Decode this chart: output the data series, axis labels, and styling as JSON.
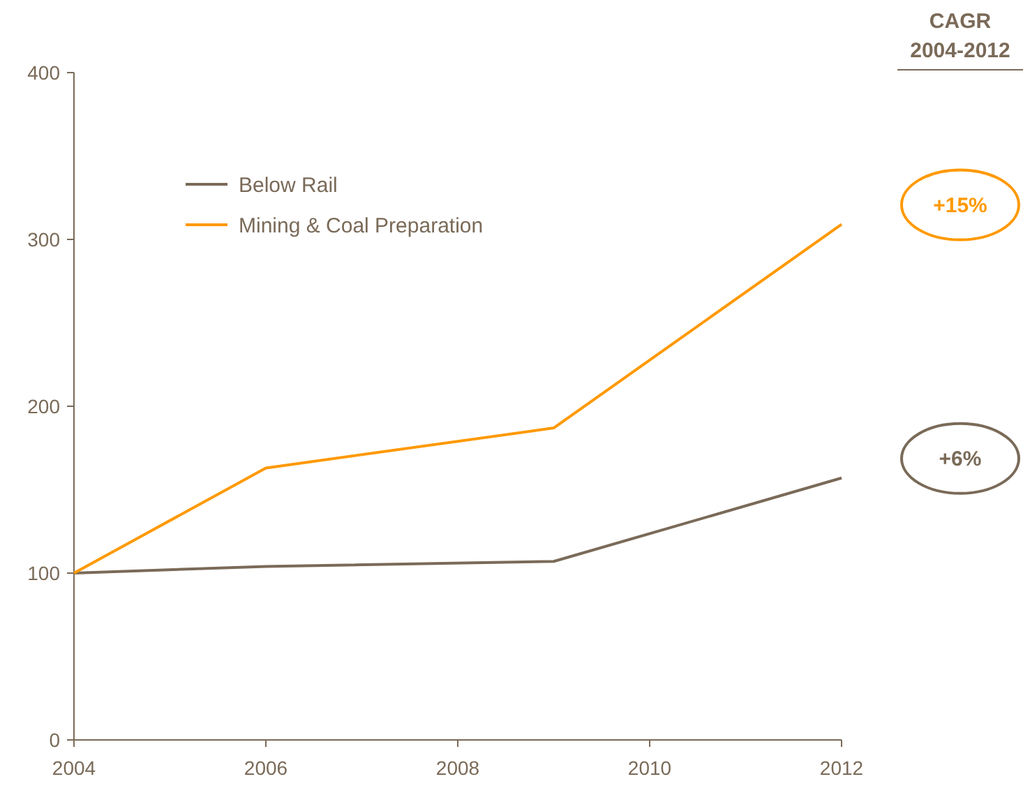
{
  "chart_data": {
    "type": "line",
    "x": [
      2004,
      2006,
      2009,
      2012
    ],
    "series": [
      {
        "name": "Below Rail",
        "color": "#7a6a58",
        "values": [
          100,
          104,
          107,
          157
        ]
      },
      {
        "name": "Mining & Coal Preparation",
        "color": "#ff9900",
        "values": [
          100,
          163,
          187,
          309
        ]
      }
    ],
    "xlim": [
      2004,
      2012
    ],
    "xticks": [
      2004,
      2006,
      2008,
      2010,
      2012
    ],
    "ylim": [
      0,
      400
    ],
    "yticks": [
      0,
      100,
      200,
      300,
      400
    ],
    "grid": false,
    "legend": "top left",
    "marker": "none",
    "line_style": "solid",
    "annotations": [
      "CAGR\n2004-2012",
      "+15%",
      "+6%"
    ]
  }
}
